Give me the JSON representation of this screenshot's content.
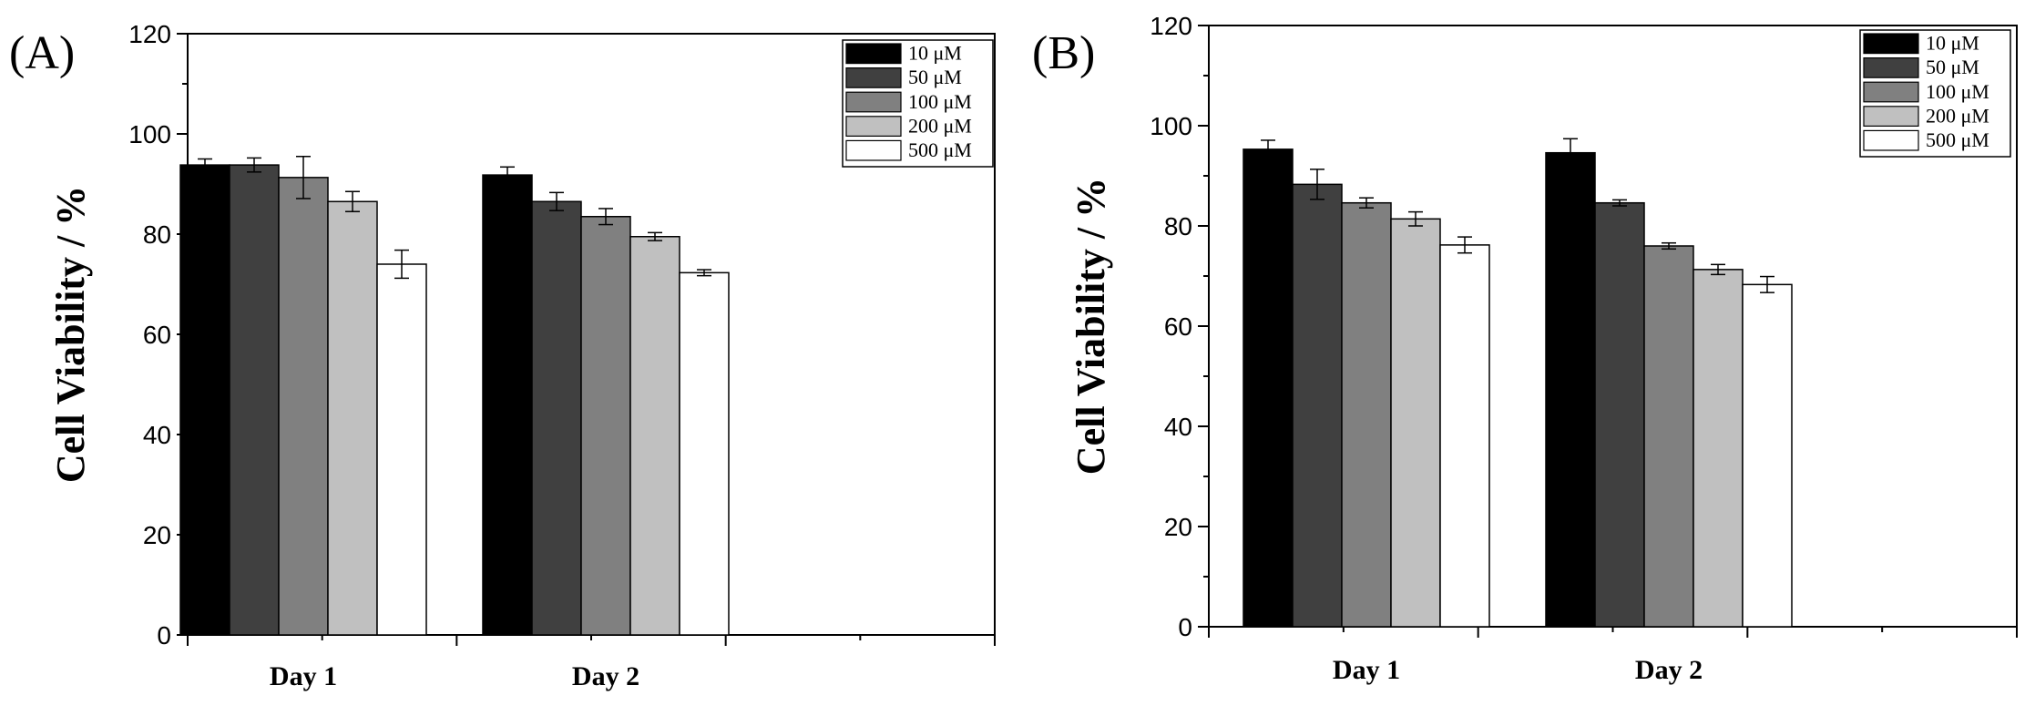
{
  "chart_data": [
    {
      "type": "bar",
      "panel_label": "(A)",
      "categories": [
        "Day 1",
        "Day 2"
      ],
      "ylabel": "Cell Viability / %",
      "xlabel": "",
      "ylim": [
        0,
        120
      ],
      "yticks": [
        "0",
        "20",
        "40",
        "60",
        "80",
        "100",
        "120"
      ],
      "legend_position": "top-right",
      "series": [
        {
          "name": "10 μM",
          "color": "#000000",
          "values": [
            93.8,
            91.8
          ],
          "errors": [
            1.2,
            1.6
          ]
        },
        {
          "name": "50 μM",
          "color": "#404040",
          "values": [
            93.8,
            86.5
          ],
          "errors": [
            1.4,
            1.8
          ]
        },
        {
          "name": "100 μM",
          "color": "#808080",
          "values": [
            91.3,
            83.5
          ],
          "errors": [
            4.2,
            1.6
          ]
        },
        {
          "name": "200 μM",
          "color": "#c0c0c0",
          "values": [
            86.5,
            79.5
          ],
          "errors": [
            2.0,
            0.8
          ]
        },
        {
          "name": "500 μM",
          "color": "#ffffff",
          "values": [
            74.0,
            72.3
          ],
          "errors": [
            2.8,
            0.6
          ]
        }
      ]
    },
    {
      "type": "bar",
      "panel_label": "(B)",
      "categories": [
        "Day 1",
        "Day 2"
      ],
      "ylabel": "Cell Viability / %",
      "xlabel": "",
      "ylim": [
        0,
        120
      ],
      "yticks": [
        "0",
        "20",
        "40",
        "60",
        "80",
        "100",
        "120"
      ],
      "legend_position": "top-right",
      "series": [
        {
          "name": "10 μM",
          "color": "#000000",
          "values": [
            95.3,
            94.6
          ],
          "errors": [
            1.8,
            2.8
          ]
        },
        {
          "name": "50 μM",
          "color": "#404040",
          "values": [
            88.3,
            84.6
          ],
          "errors": [
            3.0,
            0.6
          ]
        },
        {
          "name": "100 μM",
          "color": "#808080",
          "values": [
            84.6,
            76.0
          ],
          "errors": [
            1.0,
            0.6
          ]
        },
        {
          "name": "200 μM",
          "color": "#c0c0c0",
          "values": [
            81.4,
            71.3
          ],
          "errors": [
            1.4,
            1.0
          ]
        },
        {
          "name": "500 μM",
          "color": "#ffffff",
          "values": [
            76.2,
            68.3
          ],
          "errors": [
            1.6,
            1.6
          ]
        }
      ]
    }
  ]
}
